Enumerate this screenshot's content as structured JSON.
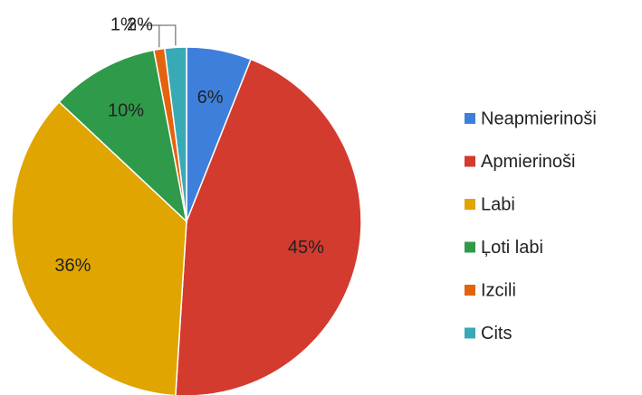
{
  "chart_data": {
    "type": "pie",
    "categories": [
      "Neapmierinoši",
      "Apmierinoši",
      "Labi",
      "Ļoti labi",
      "Izcili",
      "Cits"
    ],
    "values": [
      6,
      45,
      36,
      10,
      1,
      2
    ],
    "value_labels": [
      "6%",
      "45%",
      "36%",
      "10%",
      "1%",
      "2%"
    ],
    "colors": [
      "#3f7fdc",
      "#d33b2f",
      "#e0a500",
      "#2f9a49",
      "#e5620e",
      "#3aa9b6"
    ],
    "legend": "right"
  }
}
